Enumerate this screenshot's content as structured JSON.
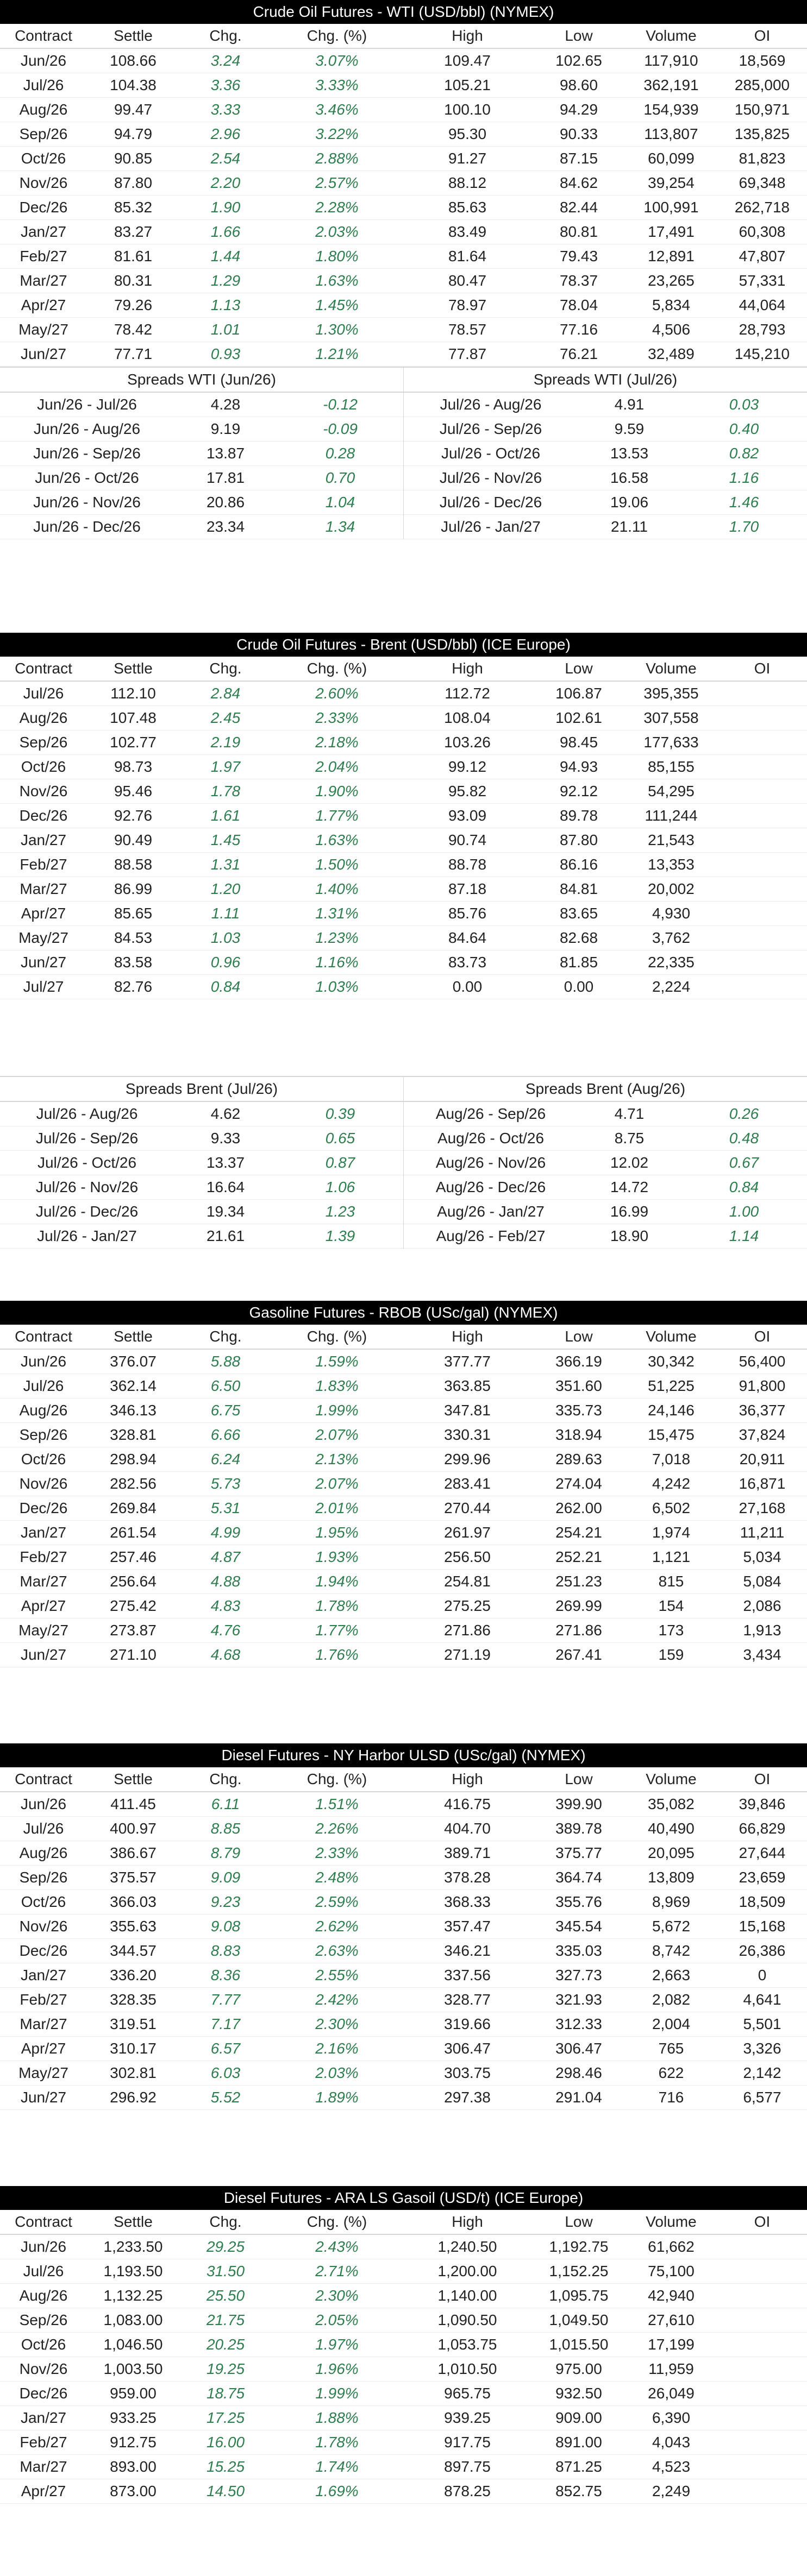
{
  "columns": [
    "Contract",
    "Settle",
    "Chg.",
    "Chg. (%)",
    "High",
    "Low",
    "Volume",
    "OI"
  ],
  "wti": {
    "title": "Crude Oil Futures - WTI (USD/bbl) (NYMEX)",
    "rows": [
      [
        "Jun/26",
        "108.66",
        "3.24",
        "3.07%",
        "109.47",
        "102.65",
        "117,910",
        "18,569"
      ],
      [
        "Jul/26",
        "104.38",
        "3.36",
        "3.33%",
        "105.21",
        "98.60",
        "362,191",
        "285,000"
      ],
      [
        "Aug/26",
        "99.47",
        "3.33",
        "3.46%",
        "100.10",
        "94.29",
        "154,939",
        "150,971"
      ],
      [
        "Sep/26",
        "94.79",
        "2.96",
        "3.22%",
        "95.30",
        "90.33",
        "113,807",
        "135,825"
      ],
      [
        "Oct/26",
        "90.85",
        "2.54",
        "2.88%",
        "91.27",
        "87.15",
        "60,099",
        "81,823"
      ],
      [
        "Nov/26",
        "87.80",
        "2.20",
        "2.57%",
        "88.12",
        "84.62",
        "39,254",
        "69,348"
      ],
      [
        "Dec/26",
        "85.32",
        "1.90",
        "2.28%",
        "85.63",
        "82.44",
        "100,991",
        "262,718"
      ],
      [
        "Jan/27",
        "83.27",
        "1.66",
        "2.03%",
        "83.49",
        "80.81",
        "17,491",
        "60,308"
      ],
      [
        "Feb/27",
        "81.61",
        "1.44",
        "1.80%",
        "81.64",
        "79.43",
        "12,891",
        "47,807"
      ],
      [
        "Mar/27",
        "80.31",
        "1.29",
        "1.63%",
        "80.47",
        "78.37",
        "23,265",
        "57,331"
      ],
      [
        "Apr/27",
        "79.26",
        "1.13",
        "1.45%",
        "78.97",
        "78.04",
        "5,834",
        "44,064"
      ],
      [
        "May/27",
        "78.42",
        "1.01",
        "1.30%",
        "78.57",
        "77.16",
        "4,506",
        "28,793"
      ],
      [
        "Jun/27",
        "77.71",
        "0.93",
        "1.21%",
        "77.87",
        "76.21",
        "32,489",
        "145,210"
      ]
    ],
    "spreads_left": {
      "title": "Spreads WTI (Jun/26)",
      "rows": [
        [
          "Jun/26 - Jul/26",
          "4.28",
          "-0.12"
        ],
        [
          "Jun/26 - Aug/26",
          "9.19",
          "-0.09"
        ],
        [
          "Jun/26 - Sep/26",
          "13.87",
          "0.28"
        ],
        [
          "Jun/26 - Oct/26",
          "17.81",
          "0.70"
        ],
        [
          "Jun/26 - Nov/26",
          "20.86",
          "1.04"
        ],
        [
          "Jun/26 - Dec/26",
          "23.34",
          "1.34"
        ]
      ]
    },
    "spreads_right": {
      "title": "Spreads WTI (Jul/26)",
      "rows": [
        [
          "Jul/26 - Aug/26",
          "4.91",
          "0.03"
        ],
        [
          "Jul/26 - Sep/26",
          "9.59",
          "0.40"
        ],
        [
          "Jul/26 - Oct/26",
          "13.53",
          "0.82"
        ],
        [
          "Jul/26 - Nov/26",
          "16.58",
          "1.16"
        ],
        [
          "Jul/26 - Dec/26",
          "19.06",
          "1.46"
        ],
        [
          "Jul/26 - Jan/27",
          "21.11",
          "1.70"
        ]
      ]
    }
  },
  "brent": {
    "title": "Crude Oil Futures - Brent (USD/bbl) (ICE Europe)",
    "rows": [
      [
        "Jul/26",
        "112.10",
        "2.84",
        "2.60%",
        "112.72",
        "106.87",
        "395,355",
        ""
      ],
      [
        "Aug/26",
        "107.48",
        "2.45",
        "2.33%",
        "108.04",
        "102.61",
        "307,558",
        ""
      ],
      [
        "Sep/26",
        "102.77",
        "2.19",
        "2.18%",
        "103.26",
        "98.45",
        "177,633",
        ""
      ],
      [
        "Oct/26",
        "98.73",
        "1.97",
        "2.04%",
        "99.12",
        "94.93",
        "85,155",
        ""
      ],
      [
        "Nov/26",
        "95.46",
        "1.78",
        "1.90%",
        "95.82",
        "92.12",
        "54,295",
        ""
      ],
      [
        "Dec/26",
        "92.76",
        "1.61",
        "1.77%",
        "93.09",
        "89.78",
        "111,244",
        ""
      ],
      [
        "Jan/27",
        "90.49",
        "1.45",
        "1.63%",
        "90.74",
        "87.80",
        "21,543",
        ""
      ],
      [
        "Feb/27",
        "88.58",
        "1.31",
        "1.50%",
        "88.78",
        "86.16",
        "13,353",
        ""
      ],
      [
        "Mar/27",
        "86.99",
        "1.20",
        "1.40%",
        "87.18",
        "84.81",
        "20,002",
        ""
      ],
      [
        "Apr/27",
        "85.65",
        "1.11",
        "1.31%",
        "85.76",
        "83.65",
        "4,930",
        ""
      ],
      [
        "May/27",
        "84.53",
        "1.03",
        "1.23%",
        "84.64",
        "82.68",
        "3,762",
        ""
      ],
      [
        "Jun/27",
        "83.58",
        "0.96",
        "1.16%",
        "83.73",
        "81.85",
        "22,335",
        ""
      ],
      [
        "Jul/27",
        "82.76",
        "0.84",
        "1.03%",
        "0.00",
        "0.00",
        "2,224",
        ""
      ]
    ],
    "spreads_left": {
      "title": "Spreads Brent (Jul/26)",
      "rows": [
        [
          "Jul/26 - Aug/26",
          "4.62",
          "0.39"
        ],
        [
          "Jul/26 - Sep/26",
          "9.33",
          "0.65"
        ],
        [
          "Jul/26 - Oct/26",
          "13.37",
          "0.87"
        ],
        [
          "Jul/26 - Nov/26",
          "16.64",
          "1.06"
        ],
        [
          "Jul/26 - Dec/26",
          "19.34",
          "1.23"
        ],
        [
          "Jul/26 - Jan/27",
          "21.61",
          "1.39"
        ]
      ]
    },
    "spreads_right": {
      "title": "Spreads Brent (Aug/26)",
      "rows": [
        [
          "Aug/26 - Sep/26",
          "4.71",
          "0.26"
        ],
        [
          "Aug/26 - Oct/26",
          "8.75",
          "0.48"
        ],
        [
          "Aug/26 - Nov/26",
          "12.02",
          "0.67"
        ],
        [
          "Aug/26 - Dec/26",
          "14.72",
          "0.84"
        ],
        [
          "Aug/26 - Jan/27",
          "16.99",
          "1.00"
        ],
        [
          "Aug/26 - Feb/27",
          "18.90",
          "1.14"
        ]
      ]
    }
  },
  "rbob": {
    "title": "Gasoline Futures - RBOB (USc/gal) (NYMEX)",
    "rows": [
      [
        "Jun/26",
        "376.07",
        "5.88",
        "1.59%",
        "377.77",
        "366.19",
        "30,342",
        "56,400"
      ],
      [
        "Jul/26",
        "362.14",
        "6.50",
        "1.83%",
        "363.85",
        "351.60",
        "51,225",
        "91,800"
      ],
      [
        "Aug/26",
        "346.13",
        "6.75",
        "1.99%",
        "347.81",
        "335.73",
        "24,146",
        "36,377"
      ],
      [
        "Sep/26",
        "328.81",
        "6.66",
        "2.07%",
        "330.31",
        "318.94",
        "15,475",
        "37,824"
      ],
      [
        "Oct/26",
        "298.94",
        "6.24",
        "2.13%",
        "299.96",
        "289.63",
        "7,018",
        "20,911"
      ],
      [
        "Nov/26",
        "282.56",
        "5.73",
        "2.07%",
        "283.41",
        "274.04",
        "4,242",
        "16,871"
      ],
      [
        "Dec/26",
        "269.84",
        "5.31",
        "2.01%",
        "270.44",
        "262.00",
        "6,502",
        "27,168"
      ],
      [
        "Jan/27",
        "261.54",
        "4.99",
        "1.95%",
        "261.97",
        "254.21",
        "1,974",
        "11,211"
      ],
      [
        "Feb/27",
        "257.46",
        "4.87",
        "1.93%",
        "256.50",
        "252.21",
        "1,121",
        "5,034"
      ],
      [
        "Mar/27",
        "256.64",
        "4.88",
        "1.94%",
        "254.81",
        "251.23",
        "815",
        "5,084"
      ],
      [
        "Apr/27",
        "275.42",
        "4.83",
        "1.78%",
        "275.25",
        "269.99",
        "154",
        "2,086"
      ],
      [
        "May/27",
        "273.87",
        "4.76",
        "1.77%",
        "271.86",
        "271.86",
        "173",
        "1,913"
      ],
      [
        "Jun/27",
        "271.10",
        "4.68",
        "1.76%",
        "271.19",
        "267.41",
        "159",
        "3,434"
      ]
    ]
  },
  "ulsd": {
    "title": "Diesel Futures - NY Harbor ULSD (USc/gal) (NYMEX)",
    "rows": [
      [
        "Jun/26",
        "411.45",
        "6.11",
        "1.51%",
        "416.75",
        "399.90",
        "35,082",
        "39,846"
      ],
      [
        "Jul/26",
        "400.97",
        "8.85",
        "2.26%",
        "404.70",
        "389.78",
        "40,490",
        "66,829"
      ],
      [
        "Aug/26",
        "386.67",
        "8.79",
        "2.33%",
        "389.71",
        "375.77",
        "20,095",
        "27,644"
      ],
      [
        "Sep/26",
        "375.57",
        "9.09",
        "2.48%",
        "378.28",
        "364.74",
        "13,809",
        "23,659"
      ],
      [
        "Oct/26",
        "366.03",
        "9.23",
        "2.59%",
        "368.33",
        "355.76",
        "8,969",
        "18,509"
      ],
      [
        "Nov/26",
        "355.63",
        "9.08",
        "2.62%",
        "357.47",
        "345.54",
        "5,672",
        "15,168"
      ],
      [
        "Dec/26",
        "344.57",
        "8.83",
        "2.63%",
        "346.21",
        "335.03",
        "8,742",
        "26,386"
      ],
      [
        "Jan/27",
        "336.20",
        "8.36",
        "2.55%",
        "337.56",
        "327.73",
        "2,663",
        "0"
      ],
      [
        "Feb/27",
        "328.35",
        "7.77",
        "2.42%",
        "328.77",
        "321.93",
        "2,082",
        "4,641"
      ],
      [
        "Mar/27",
        "319.51",
        "7.17",
        "2.30%",
        "319.66",
        "312.33",
        "2,004",
        "5,501"
      ],
      [
        "Apr/27",
        "310.17",
        "6.57",
        "2.16%",
        "306.47",
        "306.47",
        "765",
        "3,326"
      ],
      [
        "May/27",
        "302.81",
        "6.03",
        "2.03%",
        "303.75",
        "298.46",
        "622",
        "2,142"
      ],
      [
        "Jun/27",
        "296.92",
        "5.52",
        "1.89%",
        "297.38",
        "291.04",
        "716",
        "6,577"
      ]
    ]
  },
  "gasoil": {
    "title": "Diesel Futures - ARA LS Gasoil (USD/t) (ICE Europe)",
    "rows": [
      [
        "Jun/26",
        "1,233.50",
        "29.25",
        "2.43%",
        "1,240.50",
        "1,192.75",
        "61,662",
        ""
      ],
      [
        "Jul/26",
        "1,193.50",
        "31.50",
        "2.71%",
        "1,200.00",
        "1,152.25",
        "75,100",
        ""
      ],
      [
        "Aug/26",
        "1,132.25",
        "25.50",
        "2.30%",
        "1,140.00",
        "1,095.75",
        "42,940",
        ""
      ],
      [
        "Sep/26",
        "1,083.00",
        "21.75",
        "2.05%",
        "1,090.50",
        "1,049.50",
        "27,610",
        ""
      ],
      [
        "Oct/26",
        "1,046.50",
        "20.25",
        "1.97%",
        "1,053.75",
        "1,015.50",
        "17,199",
        ""
      ],
      [
        "Nov/26",
        "1,003.50",
        "19.25",
        "1.96%",
        "1,010.50",
        "975.00",
        "11,959",
        ""
      ],
      [
        "Dec/26",
        "959.00",
        "18.75",
        "1.99%",
        "965.75",
        "932.50",
        "26,049",
        ""
      ],
      [
        "Jan/27",
        "933.25",
        "17.25",
        "1.88%",
        "939.25",
        "909.00",
        "6,390",
        ""
      ],
      [
        "Feb/27",
        "912.75",
        "16.00",
        "1.78%",
        "917.75",
        "891.00",
        "4,043",
        ""
      ],
      [
        "Mar/27",
        "893.00",
        "15.25",
        "1.74%",
        "897.75",
        "871.25",
        "4,523",
        ""
      ],
      [
        "Apr/27",
        "873.00",
        "14.50",
        "1.69%",
        "878.25",
        "852.75",
        "2,249",
        ""
      ]
    ]
  }
}
